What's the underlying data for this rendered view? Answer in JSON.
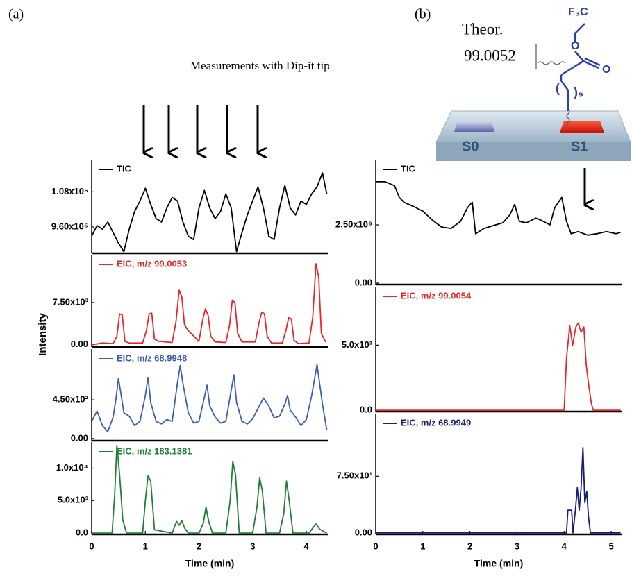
{
  "figure": {
    "panel_labels": [
      "(a)",
      "(b)"
    ],
    "annotation": "Measurements with Dip-it tip",
    "theor_label": "Theor.",
    "theor_value": "99.0052",
    "structure": {
      "cf3": "F₃C",
      "ether_o": "O",
      "carbonyl_o": "O",
      "paren_open": "(",
      "paren_close": ")₉",
      "spot_0": "S0",
      "spot_1": "S1"
    }
  },
  "chart_data": [
    {
      "type": "line",
      "xlim": [
        0,
        4.4
      ],
      "ylim": [
        870000,
        1190000
      ],
      "yticks": [
        {
          "value": 960000,
          "label": "9.60x10⁵"
        },
        {
          "value": 1080000,
          "label": "1.08x10⁶"
        }
      ],
      "x": [
        0,
        0.1,
        0.2,
        0.3,
        0.4,
        0.5,
        0.6,
        0.7,
        0.8,
        0.9,
        1.0,
        1.1,
        1.2,
        1.3,
        1.4,
        1.5,
        1.6,
        1.7,
        1.8,
        1.9,
        2.0,
        2.1,
        2.2,
        2.3,
        2.4,
        2.5,
        2.6,
        2.7,
        2.8,
        2.9,
        3.0,
        3.1,
        3.2,
        3.3,
        3.4,
        3.5,
        3.6,
        3.7,
        3.8,
        3.9,
        4.0,
        4.1,
        4.2,
        4.3,
        4.38
      ],
      "series": [
        {
          "name": "TIC",
          "color": "#000000",
          "values": [
            928800,
            964800,
            952800,
            976800,
            940800,
            904800,
            876000,
            952800,
            1012800,
            1048800,
            1092000,
            1036800,
            988800,
            976800,
            1024800,
            1060800,
            1048800,
            976800,
            928800,
            916800,
            1024800,
            1084800,
            1024800,
            988800,
            1012800,
            1072800,
            1024800,
            876000,
            940800,
            1000800,
            1048800,
            1096800,
            1024800,
            928800,
            916800,
            1024800,
            1101600,
            1024800,
            1000800,
            1048800,
            1036800,
            1072800,
            1096800,
            1144800,
            1072800
          ]
        }
      ]
    },
    {
      "type": "line",
      "xlim": [
        0,
        4.4
      ],
      "ylim": [
        -400,
        16000
      ],
      "y_label": "Intensity",
      "yticks": [
        {
          "value": 0,
          "label": "0.00"
        },
        {
          "value": 7500,
          "label": "7.50x10³"
        }
      ],
      "x": [
        0,
        0.2,
        0.4,
        0.47,
        0.52,
        0.57,
        0.62,
        0.7,
        0.95,
        1.02,
        1.07,
        1.12,
        1.17,
        1.25,
        1.5,
        1.57,
        1.63,
        1.68,
        1.73,
        1.8,
        2.0,
        2.07,
        2.12,
        2.17,
        2.22,
        2.3,
        2.5,
        2.57,
        2.62,
        2.67,
        2.72,
        2.8,
        3.05,
        3.12,
        3.17,
        3.22,
        3.27,
        3.35,
        3.55,
        3.62,
        3.67,
        3.72,
        3.77,
        3.85,
        4.05,
        4.12,
        4.18,
        4.23,
        4.28,
        4.36
      ],
      "series": [
        {
          "name": "EIC, m/z 99.0053",
          "color": "#e8262a",
          "values": [
            0,
            300,
            200,
            1500,
            5500,
            5300,
            600,
            300,
            300,
            2500,
            5500,
            5600,
            1000,
            600,
            400,
            4000,
            9700,
            8500,
            3500,
            2500,
            600,
            4500,
            6400,
            5200,
            1500,
            500,
            400,
            3500,
            7900,
            7500,
            2000,
            500,
            500,
            4000,
            5800,
            5500,
            1500,
            300,
            300,
            2500,
            4800,
            4600,
            800,
            200,
            300,
            5000,
            14400,
            12000,
            2000,
            500
          ]
        }
      ]
    },
    {
      "type": "line",
      "xlim": [
        0,
        4.4
      ],
      "ylim": [
        -25,
        1040
      ],
      "yticks": [
        {
          "value": 0,
          "label": "0.00"
        },
        {
          "value": 450,
          "label": "4.50x10²"
        }
      ],
      "x": [
        0,
        0.1,
        0.2,
        0.3,
        0.4,
        0.45,
        0.5,
        0.55,
        0.6,
        0.7,
        0.8,
        0.9,
        1.0,
        1.05,
        1.1,
        1.2,
        1.3,
        1.4,
        1.5,
        1.6,
        1.65,
        1.7,
        1.8,
        1.9,
        2.0,
        2.1,
        2.15,
        2.2,
        2.3,
        2.4,
        2.5,
        2.6,
        2.65,
        2.7,
        2.8,
        2.9,
        3.0,
        3.1,
        3.2,
        3.3,
        3.4,
        3.5,
        3.6,
        3.65,
        3.7,
        3.8,
        3.9,
        4.0,
        4.1,
        4.2,
        4.3,
        4.38
      ],
      "series": [
        {
          "name": "EIC, m/z 68.9948",
          "color": "#3a5dae",
          "values": [
            200,
            320,
            150,
            80,
            250,
            450,
            700,
            500,
            300,
            260,
            150,
            200,
            500,
            710,
            420,
            200,
            170,
            220,
            200,
            650,
            850,
            640,
            300,
            180,
            200,
            480,
            620,
            380,
            250,
            180,
            200,
            560,
            740,
            420,
            200,
            170,
            230,
            350,
            470,
            380,
            240,
            260,
            400,
            500,
            330,
            250,
            150,
            220,
            500,
            860,
            400,
            100
          ]
        }
      ]
    },
    {
      "type": "line",
      "xlim": [
        0,
        4.4
      ],
      "ylim": [
        -200,
        14000
      ],
      "x_label": "Time (min)",
      "xticks": [
        0,
        1,
        2,
        3,
        4
      ],
      "yticks": [
        {
          "value": 0,
          "label": "0.0"
        },
        {
          "value": 5000,
          "label": "5.0x10³"
        },
        {
          "value": 10000,
          "label": "1.0x10⁴"
        }
      ],
      "x": [
        0,
        0.38,
        0.43,
        0.47,
        0.52,
        0.58,
        0.65,
        0.95,
        1.0,
        1.05,
        1.1,
        1.17,
        1.5,
        1.58,
        1.63,
        1.68,
        1.73,
        1.8,
        2.0,
        2.08,
        2.13,
        2.18,
        2.25,
        2.5,
        2.58,
        2.63,
        2.68,
        2.75,
        3.0,
        3.08,
        3.13,
        3.18,
        3.25,
        3.5,
        3.58,
        3.63,
        3.68,
        3.75,
        4.05,
        4.12,
        4.18,
        4.25,
        4.38
      ],
      "series": [
        {
          "name": "EIC, m/z 183.1381",
          "color": "#1e7d36",
          "values": [
            0,
            0,
            6000,
            13500,
            9000,
            2000,
            0,
            0,
            5000,
            8800,
            8000,
            500,
            0,
            1800,
            1200,
            1900,
            800,
            0,
            0,
            1500,
            4000,
            1800,
            0,
            0,
            5000,
            11000,
            9000,
            0,
            0,
            4000,
            8500,
            6500,
            0,
            0,
            3000,
            8000,
            5000,
            0,
            0,
            800,
            1400,
            600,
            0
          ]
        }
      ]
    },
    {
      "type": "line",
      "xlim": [
        0,
        5.22
      ],
      "ylim": [
        -60000,
        5300000
      ],
      "yticks": [
        {
          "value": 0,
          "label": "0.00"
        },
        {
          "value": 2500000,
          "label": "2.50x10⁶"
        }
      ],
      "x": [
        0,
        0.2,
        0.4,
        0.5,
        0.6,
        0.8,
        1.0,
        1.2,
        1.4,
        1.6,
        1.8,
        1.95,
        2.05,
        2.12,
        2.3,
        2.5,
        2.7,
        2.85,
        2.95,
        3.05,
        3.2,
        3.4,
        3.5,
        3.7,
        3.8,
        3.95,
        4.05,
        4.15,
        4.3,
        4.5,
        4.7,
        4.9,
        5.1,
        5.2
      ],
      "series": [
        {
          "name": "TIC",
          "color": "#000000",
          "values": [
            4350000,
            4350000,
            4180000,
            3680000,
            3470000,
            3290000,
            3090000,
            2710000,
            2410000,
            2350000,
            2650000,
            3240000,
            3470000,
            2120000,
            2350000,
            2470000,
            2590000,
            2940000,
            3380000,
            2650000,
            2590000,
            2790000,
            2710000,
            2500000,
            3240000,
            3680000,
            2650000,
            2120000,
            2210000,
            2060000,
            2120000,
            2210000,
            2120000,
            2180000
          ]
        }
      ]
    },
    {
      "type": "line",
      "xlim": [
        0,
        5.22
      ],
      "ylim": [
        -10,
        950
      ],
      "yticks": [
        {
          "value": 0,
          "label": "0.0"
        },
        {
          "value": 500,
          "label": "5.0x10²"
        }
      ],
      "x": [
        0,
        1,
        2,
        3,
        4.0,
        4.05,
        4.12,
        4.18,
        4.25,
        4.3,
        4.36,
        4.42,
        4.47,
        4.52,
        4.58,
        4.62,
        5.0,
        5.2
      ],
      "series": [
        {
          "name": "EIC, m/z  99.0054",
          "color": "#e8262a",
          "values": [
            0,
            0,
            0,
            0,
            0,
            400,
            650,
            500,
            640,
            670,
            600,
            640,
            350,
            200,
            50,
            0,
            0,
            0
          ]
        }
      ]
    },
    {
      "type": "line",
      "xlim": [
        0,
        5.22
      ],
      "ylim": [
        -2,
        158
      ],
      "x_label": "Time (min)",
      "xticks": [
        0,
        1,
        2,
        3,
        4,
        5
      ],
      "yticks": [
        {
          "value": 0,
          "label": "0.00"
        },
        {
          "value": 75,
          "label": "7.50x10¹"
        }
      ],
      "x": [
        0,
        1,
        2,
        3,
        4.0,
        4.05,
        4.08,
        4.16,
        4.19,
        4.24,
        4.28,
        4.32,
        4.36,
        4.4,
        4.44,
        4.48,
        4.52,
        4.56,
        5.2
      ],
      "series": [
        {
          "name": "EIC, m/z 68.9949",
          "color": "#1b1f73",
          "values": [
            0,
            0,
            0,
            0,
            0,
            0,
            30,
            30,
            0,
            30,
            60,
            30,
            60,
            113,
            40,
            55,
            20,
            0,
            0
          ]
        }
      ]
    }
  ]
}
